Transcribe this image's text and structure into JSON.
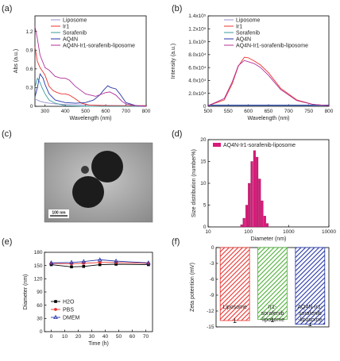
{
  "panels": {
    "a": {
      "label": "(a)"
    },
    "b": {
      "label": "(b)"
    },
    "c": {
      "label": "(c)",
      "scale_bar": "100 nm"
    },
    "d": {
      "label": "(d)"
    },
    "e": {
      "label": "(e)"
    },
    "f": {
      "label": "(f)"
    }
  },
  "chart_data": [
    {
      "id": "a",
      "type": "line",
      "xlabel": "Wavelength (nm)",
      "ylabel": "Abs (a.u.)",
      "xlim": [
        250,
        800
      ],
      "ylim": [
        0,
        1.45
      ],
      "xticks": [
        300,
        400,
        500,
        600,
        700,
        800
      ],
      "yticks": [
        0,
        0.3,
        0.6,
        0.9,
        1.2
      ],
      "legend_position": "top-right",
      "series": [
        {
          "name": "Liposome",
          "color": "#9b8fd1",
          "x": [
            250,
            275,
            300,
            350,
            400,
            500,
            600,
            700,
            800
          ],
          "y": [
            0.12,
            0.08,
            0.06,
            0.04,
            0.03,
            0.02,
            0.015,
            0.01,
            0.01
          ]
        },
        {
          "name": "Ir1",
          "color": "#e8332f",
          "x": [
            250,
            262,
            275,
            290,
            300,
            320,
            340,
            360,
            380,
            400,
            420,
            450,
            480,
            520,
            600,
            700,
            800
          ],
          "y": [
            0.95,
            0.72,
            0.62,
            0.55,
            0.5,
            0.32,
            0.25,
            0.22,
            0.2,
            0.2,
            0.18,
            0.12,
            0.05,
            0.02,
            0.01,
            0.01,
            0.01
          ]
        },
        {
          "name": "Sorafenib",
          "color": "#3a9e9a",
          "x": [
            250,
            262,
            275,
            285,
            300,
            320,
            350,
            400,
            500,
            800
          ],
          "y": [
            0.3,
            0.45,
            0.38,
            0.3,
            0.2,
            0.1,
            0.05,
            0.01,
            0.0,
            0.0
          ]
        },
        {
          "name": "AQ4N",
          "color": "#2535a8",
          "x": [
            250,
            262,
            275,
            290,
            300,
            320,
            350,
            400,
            450,
            500,
            540,
            570,
            590,
            610,
            625,
            650,
            670,
            700,
            750,
            800
          ],
          "y": [
            0.15,
            0.3,
            0.52,
            0.45,
            0.35,
            0.2,
            0.1,
            0.06,
            0.05,
            0.06,
            0.1,
            0.18,
            0.26,
            0.33,
            0.3,
            0.28,
            0.2,
            0.06,
            0.01,
            0.0
          ]
        },
        {
          "name": "AQ4N-Ir1-sorafenib-liposome",
          "color": "#b0309a",
          "x": [
            250,
            262,
            275,
            290,
            300,
            320,
            350,
            380,
            400,
            420,
            450,
            500,
            550,
            600,
            620,
            650,
            680,
            700,
            750,
            800
          ],
          "y": [
            1.28,
            1.08,
            0.82,
            0.7,
            0.62,
            0.58,
            0.48,
            0.45,
            0.45,
            0.42,
            0.32,
            0.2,
            0.16,
            0.22,
            0.23,
            0.18,
            0.08,
            0.04,
            0.01,
            0.0
          ]
        }
      ]
    },
    {
      "id": "b",
      "type": "line",
      "xlabel": "Wavelength (nm)",
      "ylabel": "Intensity (a.u.)",
      "xlim": [
        500,
        800
      ],
      "ylim": [
        0,
        140000
      ],
      "xticks": [
        500,
        550,
        600,
        650,
        700,
        750,
        800
      ],
      "yticks": [
        0,
        20000,
        40000,
        60000,
        80000,
        100000,
        120000,
        140000
      ],
      "ytick_labels": [
        "0",
        "2.0x10⁴",
        "4.0x10⁴",
        "6.0x10⁴",
        "8.0x10⁴",
        "1.0x10⁵",
        "1.2x10⁵",
        "1.4x10⁵"
      ],
      "legend_position": "top-right",
      "series": [
        {
          "name": "Liposome",
          "color": "#9b8fd1",
          "x": [
            500,
            800
          ],
          "y": [
            1000,
            1000
          ]
        },
        {
          "name": "Ir1",
          "color": "#e8332f",
          "x": [
            500,
            540,
            560,
            575,
            590,
            600,
            615,
            630,
            650,
            680,
            720,
            760,
            800
          ],
          "y": [
            1000,
            10000,
            35000,
            62000,
            76000,
            75000,
            70000,
            64000,
            52000,
            28000,
            10000,
            3000,
            1000
          ]
        },
        {
          "name": "Sorafenib",
          "color": "#3a9e9a",
          "x": [
            500,
            800
          ],
          "y": [
            1500,
            1500
          ]
        },
        {
          "name": "AQ4N",
          "color": "#2535a8",
          "x": [
            500,
            800
          ],
          "y": [
            2000,
            2000
          ]
        },
        {
          "name": "AQ4N-Ir1-sorafenib-liposome",
          "color": "#b0309a",
          "x": [
            500,
            540,
            560,
            575,
            590,
            600,
            615,
            630,
            650,
            680,
            720,
            760,
            800
          ],
          "y": [
            1000,
            12000,
            38000,
            63000,
            71000,
            69000,
            66000,
            60000,
            48000,
            26000,
            9000,
            3000,
            1000
          ]
        }
      ]
    },
    {
      "id": "d",
      "type": "bar",
      "xlabel": "Diameter (nm)",
      "ylabel": "Size distribution (number%)",
      "xscale": "log",
      "xlim": [
        10,
        10000
      ],
      "ylim": [
        0,
        20
      ],
      "xticks": [
        10,
        100,
        1000,
        10000
      ],
      "yticks": [
        0,
        5,
        10,
        15,
        20
      ],
      "legend_position": "top-left",
      "color": "#d91a7a",
      "series_name": "AQ4N-Ir1-sorafenib-liposome",
      "bins": [
        68,
        78,
        91,
        105,
        122,
        142,
        164,
        190,
        220,
        255,
        295
      ],
      "values": [
        0.5,
        2,
        5,
        10,
        15,
        17.5,
        16,
        11,
        6,
        2.5,
        0.8
      ]
    },
    {
      "id": "e",
      "type": "line",
      "xlabel": "Time (h)",
      "ylabel": "Diameter (nm)",
      "xlim": [
        -5,
        75
      ],
      "ylim": [
        0,
        180
      ],
      "xticks": [
        0,
        10,
        20,
        30,
        40,
        50,
        60,
        70
      ],
      "yticks": [
        0,
        30,
        60,
        90,
        120,
        150,
        180
      ],
      "legend_position": "bottom-left",
      "x": [
        0,
        15,
        24,
        36,
        48,
        72
      ],
      "series": [
        {
          "name": "H2O",
          "color": "#000000",
          "marker": "square",
          "values": [
            152,
            147,
            148,
            152,
            153,
            152
          ]
        },
        {
          "name": "PBS",
          "color": "#e8332f",
          "marker": "circle",
          "values": [
            155,
            154,
            155,
            157,
            157,
            155
          ]
        },
        {
          "name": "DMEM",
          "color": "#2535a8",
          "marker": "triangle",
          "values": [
            156,
            157,
            159,
            163,
            160,
            156
          ]
        }
      ]
    },
    {
      "id": "f",
      "type": "bar",
      "ylabel": "Zeta potention (mV)",
      "ylim": [
        -15,
        0
      ],
      "yticks": [
        0,
        -3,
        -6,
        -9,
        -12,
        -15
      ],
      "categories": [
        "Liposome",
        "Ir1-sorafenib-liposome",
        "AQ4N-Ir1-sorafenib-liposome"
      ],
      "category_lines": [
        [
          "Liposome"
        ],
        [
          "Ir1-",
          "sorafenib",
          "-liposome"
        ],
        [
          "AQ4N-Ir1-",
          "sorafenib",
          "-liposome"
        ]
      ],
      "values": [
        -13.8,
        -13.6,
        -14.5
      ],
      "errors": [
        0.4,
        0.4,
        0.3
      ],
      "colors": [
        "#e8332f",
        "#4caf35",
        "#2535a8"
      ]
    }
  ]
}
